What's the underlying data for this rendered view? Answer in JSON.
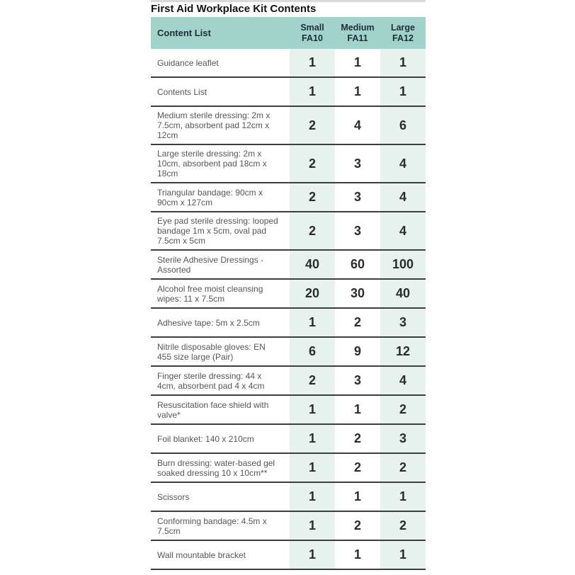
{
  "title": "First Aid Workplace Kit Contents",
  "table": {
    "content_list_label": "Content List",
    "columns": [
      {
        "size": "Small",
        "code": "FA10"
      },
      {
        "size": "Medium",
        "code": "FA11"
      },
      {
        "size": "Large",
        "code": "FA12"
      }
    ],
    "rows": [
      {
        "label": "Guidance leaflet",
        "values": [
          "1",
          "1",
          "1"
        ]
      },
      {
        "label": "Contents List",
        "values": [
          "1",
          "1",
          "1"
        ]
      },
      {
        "label": "Medium sterile dressing: 2m x 7.5cm, absorbent pad 12cm x 12cm",
        "values": [
          "2",
          "4",
          "6"
        ]
      },
      {
        "label": "Large sterile dressing: 2m x 10cm, absorbent pad 18cm x 18cm",
        "values": [
          "2",
          "3",
          "4"
        ]
      },
      {
        "label": "Triangular bandage: 90cm x 90cm x 127cm",
        "values": [
          "2",
          "3",
          "4"
        ]
      },
      {
        "label": "Eye pad sterile dressing: looped bandage 1m x 5cm, oval pad 7.5cm x 5cm",
        "values": [
          "2",
          "3",
          "4"
        ]
      },
      {
        "label": "Sterile Adhesive Dressings - Assorted",
        "values": [
          "40",
          "60",
          "100"
        ]
      },
      {
        "label": "Alcohol free moist cleansing wipes: 11 x 7.5cm",
        "values": [
          "20",
          "30",
          "40"
        ]
      },
      {
        "label": "Adhesive tape: 5m x 2.5cm",
        "values": [
          "1",
          "2",
          "3"
        ]
      },
      {
        "label": "Nitrile disposable gloves: EN 455 size large  (Pair)",
        "values": [
          "6",
          "9",
          "12"
        ]
      },
      {
        "label": "Finger sterile dressing: 44 x 4cm, absorbent pad 4 x 4cm",
        "values": [
          "2",
          "3",
          "4"
        ]
      },
      {
        "label": "Resuscitation face shield with valve*",
        "values": [
          "1",
          "1",
          "2"
        ]
      },
      {
        "label": "Foil blanket: 140 x 210cm",
        "values": [
          "1",
          "2",
          "3"
        ]
      },
      {
        "label": "Burn dressing: water-based gel soaked dressing 10 x 10cm**",
        "values": [
          "1",
          "2",
          "2"
        ]
      },
      {
        "label": "Scissors",
        "values": [
          "1",
          "1",
          "1"
        ]
      },
      {
        "label": "Conforming bandage: 4.5m x 7.5cm",
        "values": [
          "1",
          "2",
          "2"
        ]
      },
      {
        "label": "Wall mountable bracket",
        "values": [
          "1",
          "1",
          "1"
        ]
      }
    ]
  },
  "colors": {
    "header_bg": "#a2d3ca",
    "stripe_bg": "#e7f1ee",
    "rule_color": "#3d3d3d",
    "label_color": "#54585a",
    "number_color": "#2b2b2b",
    "header_text": "#1d2d3b",
    "title_color": "#131313",
    "strip_color": "#d9d9d9"
  }
}
